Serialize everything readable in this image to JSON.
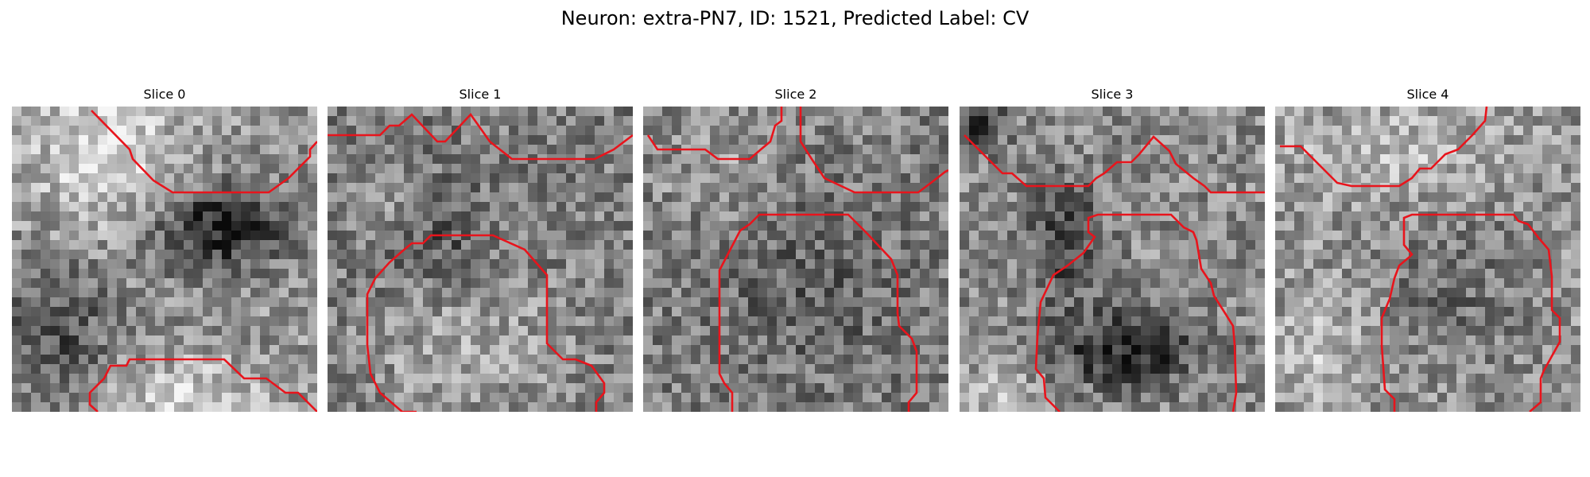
{
  "figure": {
    "title": "Neuron: extra-PN7, ID: 1521, Predicted Label: CV"
  },
  "slices": [
    {
      "label": "Slice 0"
    },
    {
      "label": "Slice 1"
    },
    {
      "label": "Slice 2"
    },
    {
      "label": "Slice 3"
    },
    {
      "label": "Slice 4"
    }
  ],
  "colors": {
    "contour": "#e8141c",
    "background": "#ffffff"
  }
}
